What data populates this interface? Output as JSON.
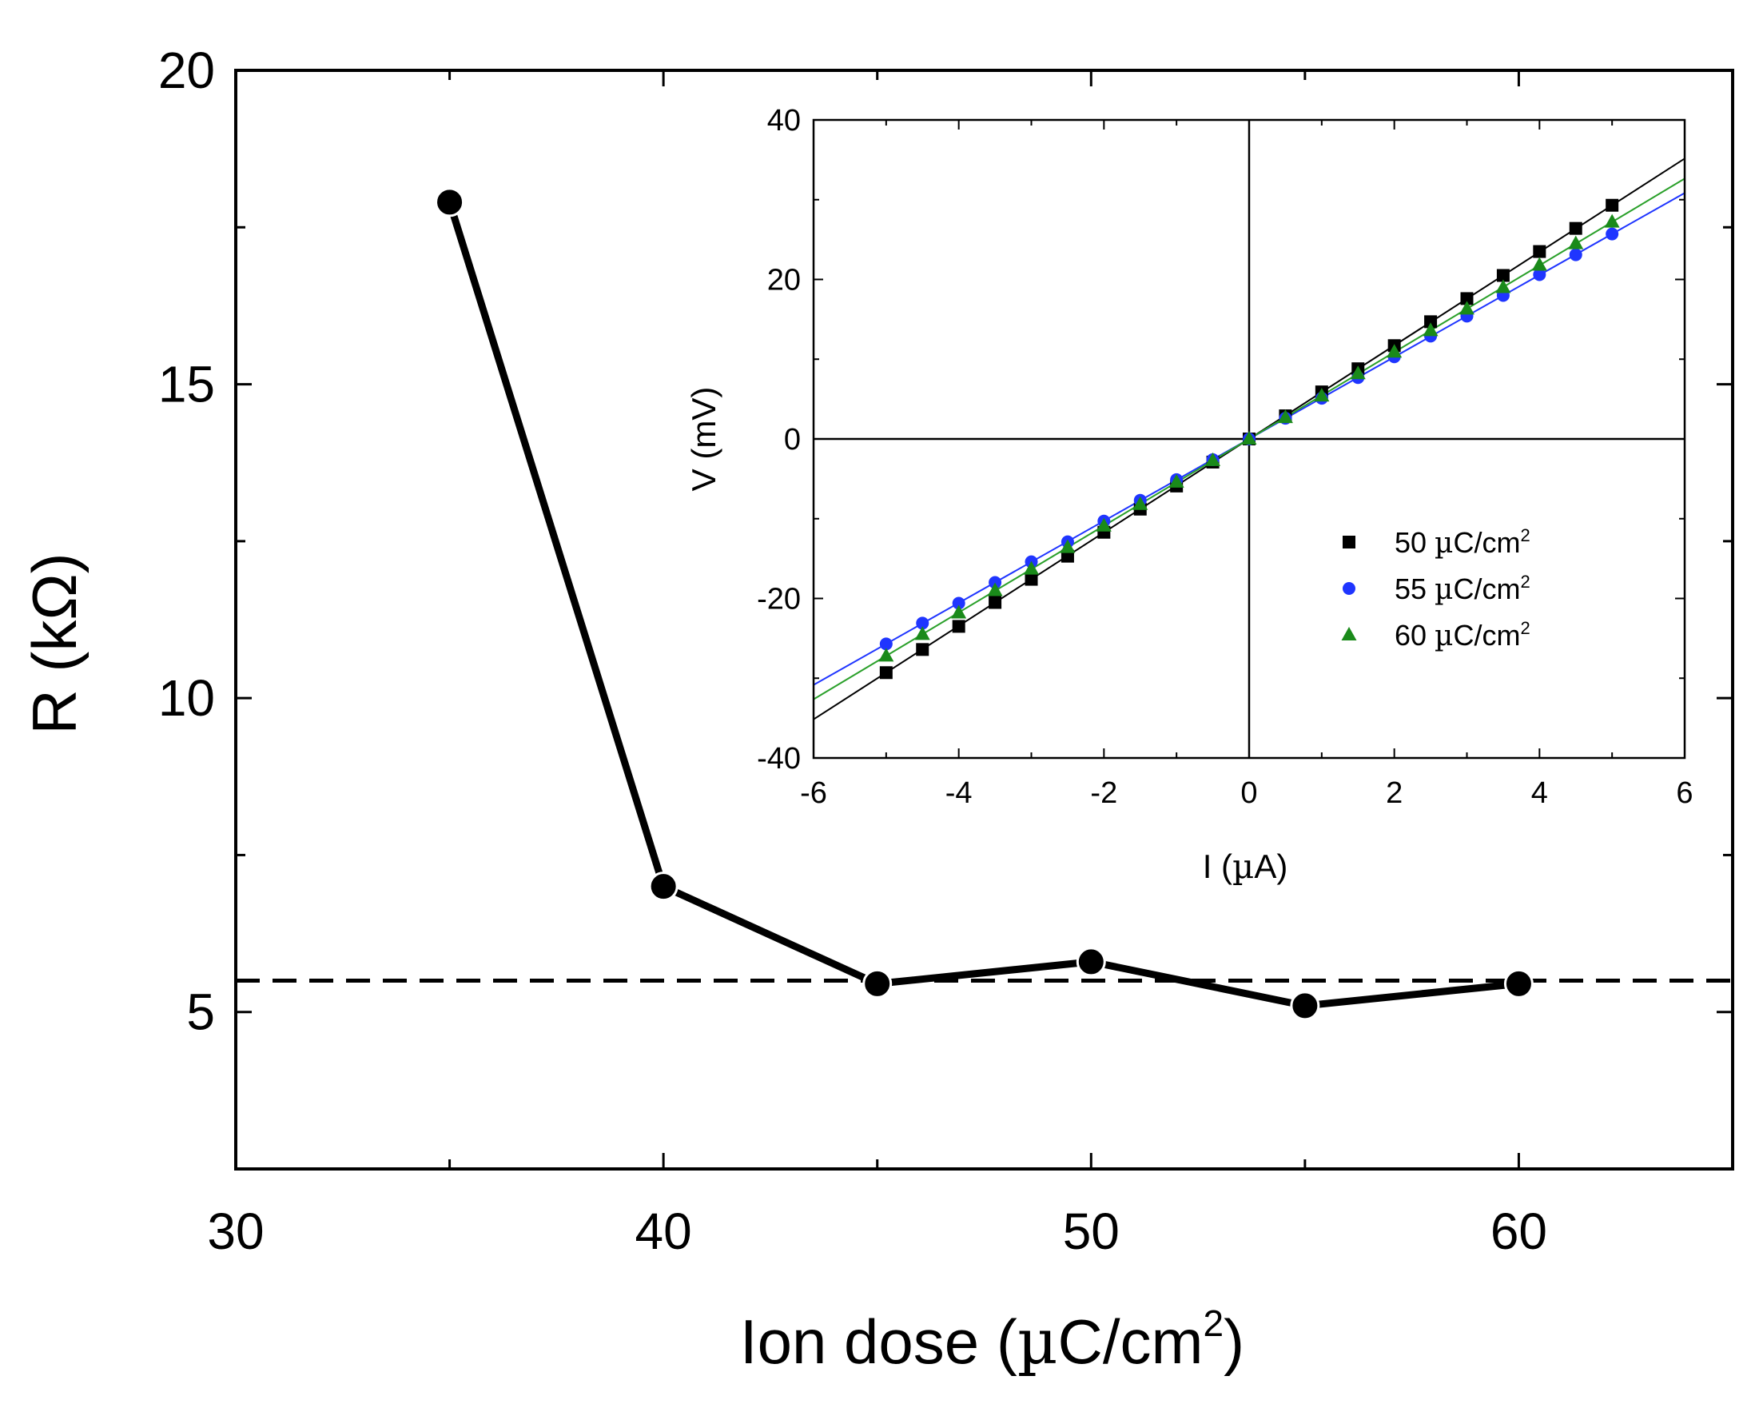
{
  "chart_data": [
    {
      "id": "main",
      "type": "line",
      "xlabel": "Ion dose (µC/cm²)",
      "xlabel_parts": {
        "pre": "Ion dose (",
        "mu": "µ",
        "unit": "C/cm",
        "sup": "2",
        "post": ")"
      },
      "ylabel": "R (kΩ)",
      "xlim": [
        30,
        65
      ],
      "ylim": [
        2.5,
        20
      ],
      "xticks": [
        30,
        40,
        50,
        60
      ],
      "yticks": [
        5,
        10,
        15,
        20
      ],
      "xtick_labels": [
        "30",
        "40",
        "50",
        "60"
      ],
      "ytick_labels": [
        "5",
        "10",
        "15",
        "20"
      ],
      "series": [
        {
          "name": "R",
          "color": "#000000",
          "marker": "circle",
          "x": [
            35,
            40,
            45,
            50,
            55,
            60
          ],
          "y": [
            17.9,
            7.0,
            5.45,
            5.8,
            5.1,
            5.45
          ]
        }
      ],
      "reference_line": {
        "style": "dashed",
        "y": 5.5,
        "color": "#000000"
      }
    },
    {
      "id": "inset",
      "type": "scatter",
      "xlabel": "I (µA)",
      "xlabel_parts": {
        "pre": "I (",
        "mu": "µ",
        "post": "A)"
      },
      "ylabel": "V (mV)",
      "xlim": [
        -6,
        6
      ],
      "ylim": [
        -40,
        40
      ],
      "xticks": [
        -6,
        -4,
        -2,
        0,
        2,
        4,
        6
      ],
      "yticks": [
        -40,
        -20,
        0,
        20,
        40
      ],
      "xtick_labels": [
        "-6",
        "-4",
        "-2",
        "0",
        "2",
        "4",
        "6"
      ],
      "ytick_labels": [
        "-40",
        "-20",
        "0",
        "20",
        "40"
      ],
      "legend_position": "center-right",
      "series": [
        {
          "name": "50 µC/cm²",
          "label_parts": {
            "num": "50",
            "mu": "µ",
            "unit": "C/cm",
            "sup": "2"
          },
          "color": "#000000",
          "fit_color": "#000000",
          "marker": "square",
          "x": [
            -5,
            -4.5,
            -4,
            -3.5,
            -3,
            -2.5,
            -2,
            -1.5,
            -1,
            -0.5,
            0,
            0.5,
            1,
            1.5,
            2,
            2.5,
            3,
            3.5,
            4,
            4.5,
            5
          ],
          "y": [
            -29.3,
            -26.4,
            -23.5,
            -20.5,
            -17.6,
            -14.7,
            -11.7,
            -8.8,
            -5.9,
            -2.9,
            0,
            2.9,
            5.9,
            8.8,
            11.7,
            14.7,
            17.6,
            20.5,
            23.5,
            26.4,
            29.3
          ],
          "fit_slope": 5.86
        },
        {
          "name": "55 µC/cm²",
          "label_parts": {
            "num": "55",
            "mu": "µ",
            "unit": "C/cm",
            "sup": "2"
          },
          "color": "#1f35ff",
          "fit_color": "#1f35ff",
          "marker": "circle",
          "x": [
            -5,
            -4.5,
            -4,
            -3.5,
            -3,
            -2.5,
            -2,
            -1.5,
            -1,
            -0.5,
            0,
            0.5,
            1,
            1.5,
            2,
            2.5,
            3,
            3.5,
            4,
            4.5,
            5
          ],
          "y": [
            -25.7,
            -23.1,
            -20.6,
            -18.0,
            -15.4,
            -12.9,
            -10.3,
            -7.7,
            -5.1,
            -2.6,
            0,
            2.6,
            5.1,
            7.7,
            10.3,
            12.9,
            15.4,
            18.0,
            20.6,
            23.1,
            25.7
          ],
          "fit_slope": 5.14
        },
        {
          "name": "60 µC/cm²",
          "label_parts": {
            "num": "60",
            "mu": "µ",
            "unit": "C/cm",
            "sup": "2"
          },
          "color": "#1a8a1a",
          "fit_color": "#2aa02a",
          "marker": "triangle",
          "x": [
            -5,
            -4.5,
            -4,
            -3.5,
            -3,
            -2.5,
            -2,
            -1.5,
            -1,
            -0.5,
            0,
            0.5,
            1,
            1.5,
            2,
            2.5,
            3,
            3.5,
            4,
            4.5,
            5
          ],
          "y": [
            -27.2,
            -24.5,
            -21.8,
            -19.0,
            -16.3,
            -13.6,
            -10.9,
            -8.2,
            -5.4,
            -2.7,
            0,
            2.7,
            5.4,
            8.2,
            10.9,
            13.6,
            16.3,
            19.0,
            21.8,
            24.5,
            27.2
          ],
          "fit_slope": 5.44
        }
      ]
    }
  ]
}
